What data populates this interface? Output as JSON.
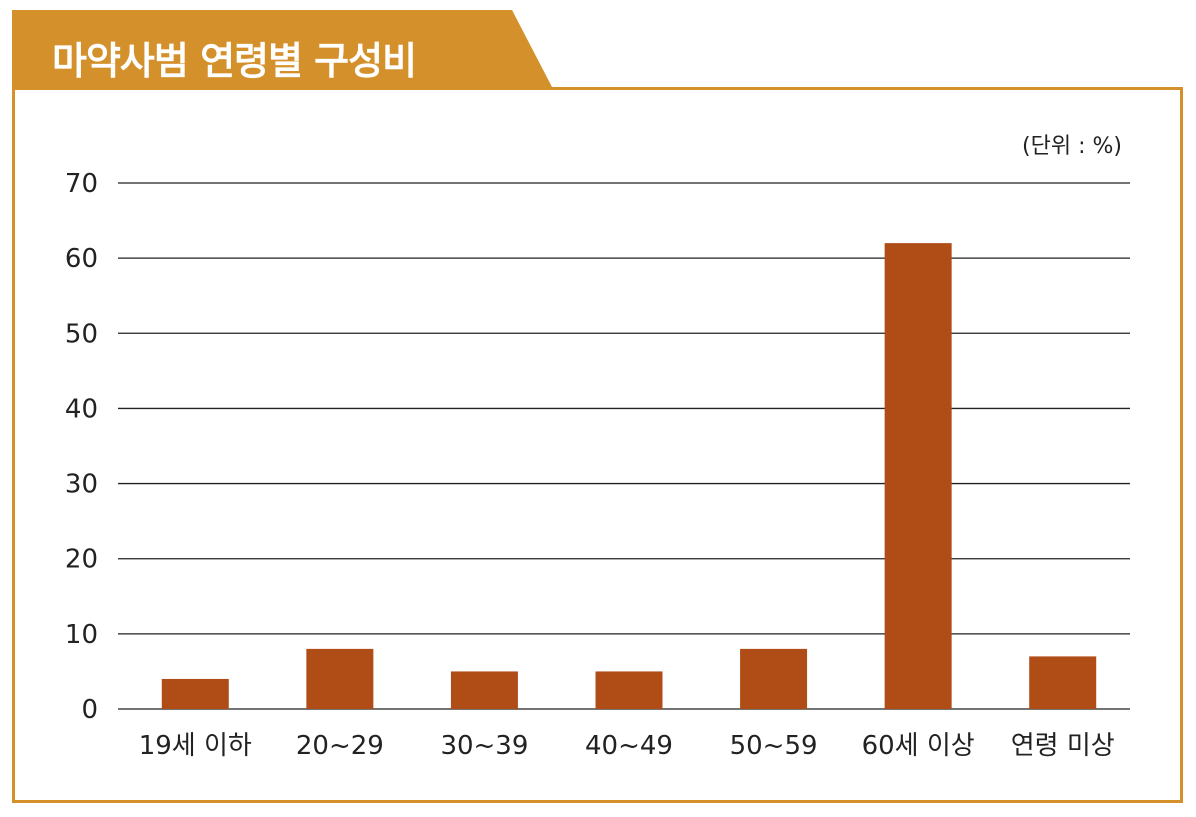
{
  "title": "마약사범 연령별 구성비",
  "colors": {
    "accent": "#d4902a",
    "bar": "#b04d17",
    "grid": "#222222"
  },
  "chart_data": {
    "type": "bar",
    "title": "마약사범 연령별 구성비",
    "unit_label": "(단위 : %)",
    "categories": [
      "19세 이하",
      "20~29",
      "30~39",
      "40~49",
      "50~59",
      "60세 이상",
      "연령 미상"
    ],
    "values": [
      4,
      8,
      5,
      5,
      8,
      62,
      7
    ],
    "yticks": [
      "0",
      "10",
      "20",
      "30",
      "40",
      "50",
      "60",
      "70"
    ],
    "ylim": [
      0,
      70
    ],
    "grid": true,
    "legend": "none"
  }
}
